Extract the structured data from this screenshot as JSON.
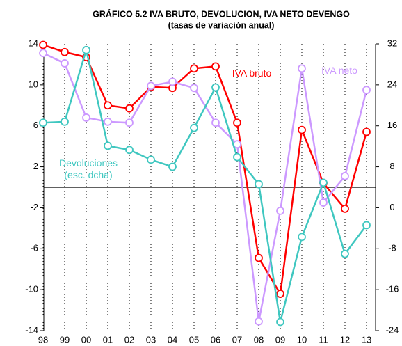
{
  "chart_data": {
    "type": "line",
    "title": "GRÁFICO 5.2 IVA BRUTO, DEVOLUCION, IVA NETO DEVENGO",
    "subtitle": "(tasas de variación anual)",
    "categories": [
      "98",
      "99",
      "00",
      "01",
      "02",
      "03",
      "04",
      "05",
      "06",
      "07",
      "08",
      "09",
      "10",
      "11",
      "12",
      "13"
    ],
    "ylim": [
      -14,
      14
    ],
    "yticks": [
      -14,
      -10,
      -6,
      -2,
      2,
      6,
      10,
      14
    ],
    "y2lim": [
      -24,
      32
    ],
    "y2ticks": [
      -24,
      -16,
      -8,
      0,
      8,
      16,
      24,
      32
    ],
    "grid": true,
    "series": [
      {
        "name": "IVA bruto",
        "color": "#ff0000",
        "values": [
          13.9,
          13.2,
          12.7,
          8.0,
          7.7,
          9.8,
          9.7,
          11.6,
          11.8,
          6.3,
          -6.9,
          -10.4,
          5.6,
          0.4,
          -2.1,
          5.4
        ]
      },
      {
        "name": "IVA neto",
        "color": "#cc99ff",
        "values": [
          13.1,
          12.1,
          6.8,
          6.4,
          6.3,
          9.9,
          10.3,
          9.7,
          6.3,
          4.2,
          -13.1,
          -2.3,
          11.6,
          -1.5,
          1.1,
          9.5
        ]
      },
      {
        "name": "Devoluciones (esc. dcha)",
        "color": "#3fc7c0",
        "axis": "y2",
        "values": [
          16.6,
          16.8,
          30.8,
          12.1,
          11.3,
          9.4,
          8.0,
          15.6,
          23.5,
          9.9,
          4.6,
          -22.3,
          -5.7,
          4.9,
          -9.0,
          -3.4
        ]
      }
    ]
  }
}
